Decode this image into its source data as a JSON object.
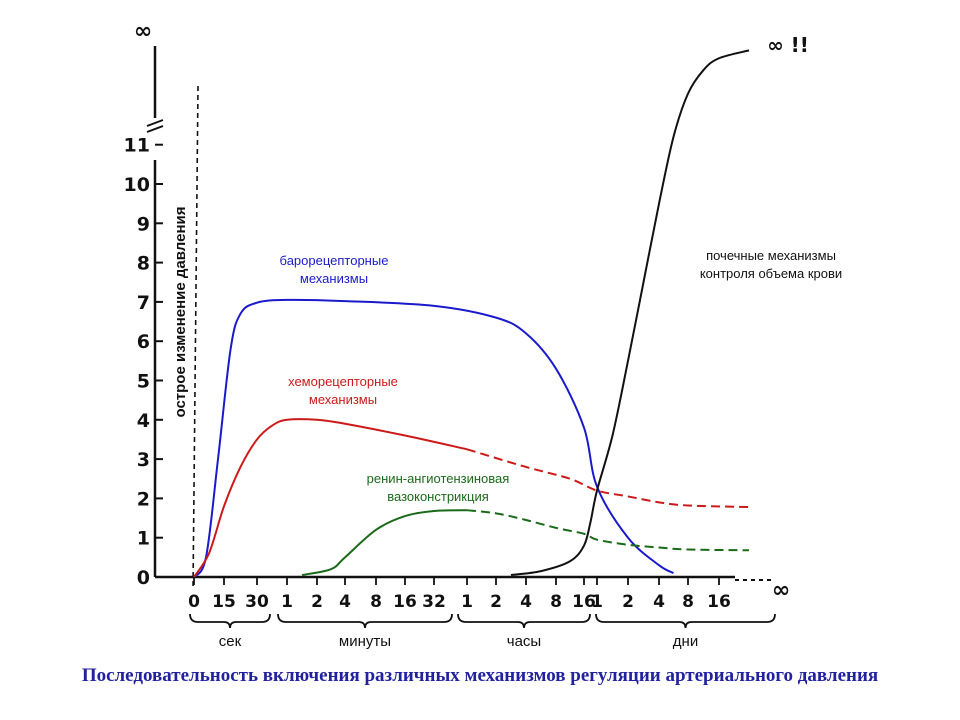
{
  "chart_data": {
    "type": "line",
    "ylabel": "острое изменение давления",
    "y_ticks": [
      "0",
      "1",
      "2",
      "3",
      "4",
      "5",
      "6",
      "7",
      "8",
      "9",
      "10",
      "11"
    ],
    "y_infinity_label": "∞",
    "x_ticks": [
      {
        "label": "0",
        "unit": "сек"
      },
      {
        "label": "15",
        "unit": "сек"
      },
      {
        "label": "30",
        "unit": "сек"
      },
      {
        "label": "1",
        "unit": "минуты"
      },
      {
        "label": "2",
        "unit": "минуты"
      },
      {
        "label": "4",
        "unit": "минуты"
      },
      {
        "label": "8",
        "unit": "минуты"
      },
      {
        "label": "16",
        "unit": "минуты"
      },
      {
        "label": "32",
        "unit": "минуты"
      },
      {
        "label": "1",
        "unit": "часы"
      },
      {
        "label": "2",
        "unit": "часы"
      },
      {
        "label": "4",
        "unit": "часы"
      },
      {
        "label": "8",
        "unit": "часы"
      },
      {
        "label": "16",
        "unit": "часы"
      },
      {
        "label": "1",
        "unit": "дни"
      },
      {
        "label": "2",
        "unit": "дни"
      },
      {
        "label": "4",
        "unit": "дни"
      },
      {
        "label": "8",
        "unit": "дни"
      },
      {
        "label": "16",
        "unit": "дни"
      }
    ],
    "x_infinity_label": "∞",
    "x_groups": [
      "сек",
      "минуты",
      "часы",
      "дни"
    ],
    "series": [
      {
        "name": "барорецепторные механизмы",
        "color": "#1a1acc",
        "dashed_from_x": null,
        "points": [
          [
            0,
            0
          ],
          [
            0.4,
            0.5
          ],
          [
            0.8,
            3
          ],
          [
            1.2,
            5.8
          ],
          [
            1.5,
            6.7
          ],
          [
            2,
            6.98
          ],
          [
            3,
            7.05
          ],
          [
            5,
            7.02
          ],
          [
            8,
            6.9
          ],
          [
            10,
            6.6
          ],
          [
            11,
            6.2
          ],
          [
            12,
            5.3
          ],
          [
            13,
            3.8
          ],
          [
            14,
            2.3
          ],
          [
            15,
            1.0
          ],
          [
            16,
            0.3
          ],
          [
            16.5,
            0.1
          ]
        ]
      },
      {
        "name": "хеморецепторные механизмы",
        "color": "#cc1a1a",
        "dashed_from_x": 9,
        "points": [
          [
            0,
            0
          ],
          [
            0.5,
            0.6
          ],
          [
            1,
            1.8
          ],
          [
            1.5,
            2.8
          ],
          [
            2,
            3.5
          ],
          [
            2.5,
            3.85
          ],
          [
            3,
            4.0
          ],
          [
            4,
            4.0
          ],
          [
            5,
            3.9
          ],
          [
            7,
            3.6
          ],
          [
            9,
            3.25
          ],
          [
            11,
            2.8
          ],
          [
            12.5,
            2.5
          ],
          [
            14,
            2.2
          ],
          [
            15,
            2.05
          ],
          [
            16,
            1.9
          ],
          [
            17,
            1.82
          ],
          [
            19,
            1.78
          ]
        ]
      },
      {
        "name": "ренин-ангиотензиновая вазоконстрикция",
        "color": "#1a6a1a",
        "dashed_from_x": 9,
        "points": [
          [
            3.5,
            0.05
          ],
          [
            4.5,
            0.2
          ],
          [
            5,
            0.5
          ],
          [
            6,
            1.2
          ],
          [
            7,
            1.55
          ],
          [
            8,
            1.68
          ],
          [
            9,
            1.7
          ],
          [
            10,
            1.62
          ],
          [
            11,
            1.45
          ],
          [
            12,
            1.25
          ],
          [
            13,
            1.1
          ],
          [
            14,
            0.95
          ],
          [
            15,
            0.82
          ],
          [
            16,
            0.75
          ],
          [
            17,
            0.7
          ],
          [
            19,
            0.68
          ]
        ]
      },
      {
        "name": "почечные механизмы контроля объема крови",
        "color": "#111111",
        "dashed_from_x": null,
        "points": [
          [
            10.5,
            0.05
          ],
          [
            11.5,
            0.15
          ],
          [
            12.5,
            0.4
          ],
          [
            13,
            0.8
          ],
          [
            13.5,
            1.4
          ],
          [
            14,
            2.2
          ],
          [
            14.5,
            3.6
          ],
          [
            15,
            5.5
          ],
          [
            15.5,
            7.5
          ],
          [
            16,
            9.5
          ],
          [
            16.5,
            11.2
          ],
          [
            17,
            12.3
          ],
          [
            17.5,
            12.9
          ],
          [
            18,
            13.2
          ],
          [
            19,
            13.4
          ]
        ]
      }
    ],
    "annotations": {
      "baro_line1": "барорецепторные",
      "baro_line2": "механизмы",
      "chemo_line1": "хеморецепторные",
      "chemo_line2": "механизмы",
      "renin_line1": "ренин-ангиотензиновая",
      "renin_line2": "вазоконстрикция",
      "renal_line1": "почечные механизмы",
      "renal_line2": "контроля объема крови",
      "infinity_marker": "∞ !!"
    }
  },
  "caption": "Последовательность включения различных механизмов регуляции артериального давления"
}
